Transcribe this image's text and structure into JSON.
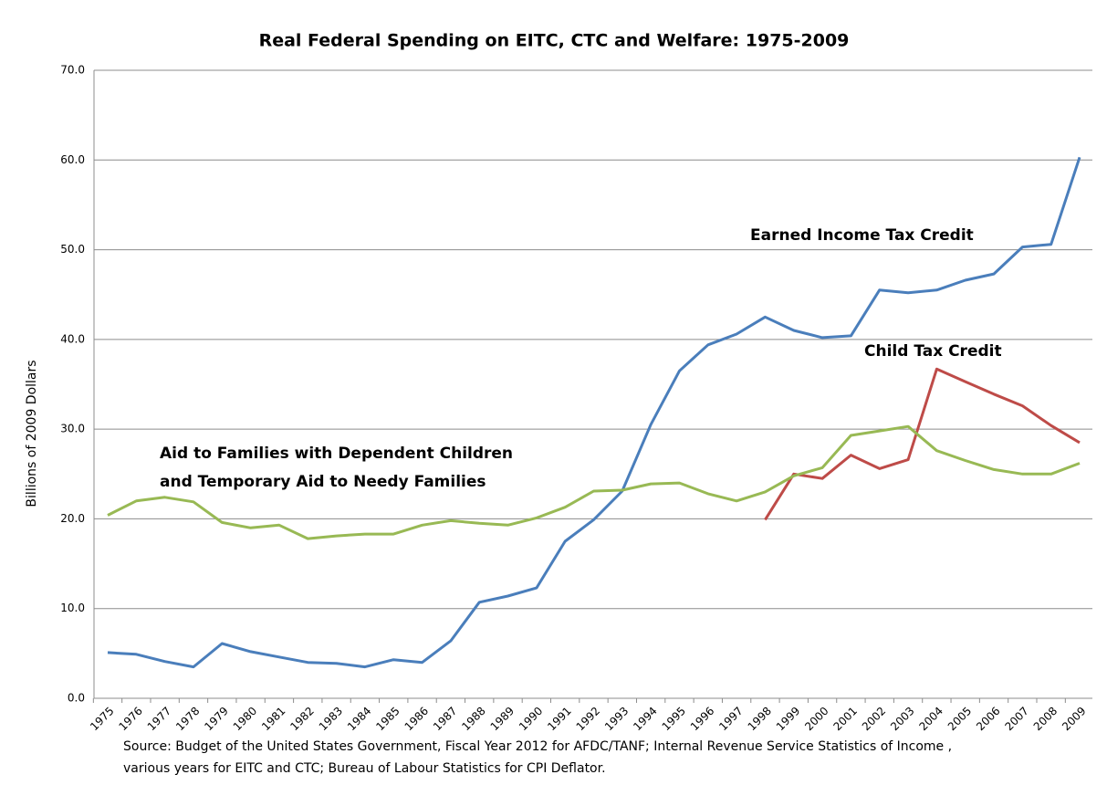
{
  "chart_data": {
    "type": "line",
    "title": "Real Federal Spending on EITC, CTC and Welfare: 1975-2009",
    "y_label": "Billions of 2009 Dollars",
    "categories": [
      "1975",
      "1976",
      "1977",
      "1978",
      "1979",
      "1980",
      "1981",
      "1982",
      "1983",
      "1984",
      "1985",
      "1986",
      "1987",
      "1988",
      "1989",
      "1990",
      "1991",
      "1992",
      "1993",
      "1994",
      "1995",
      "1996",
      "1997",
      "1998",
      "1999",
      "2000",
      "2001",
      "2002",
      "2003",
      "2004",
      "2005",
      "2006",
      "2007",
      "2008",
      "2009"
    ],
    "series": [
      {
        "name": "Earned Income Tax Credit",
        "color": "#4a7ebb",
        "values": [
          5.1,
          4.9,
          4.1,
          3.5,
          6.1,
          5.2,
          4.6,
          4.0,
          3.9,
          3.5,
          4.3,
          4.0,
          6.4,
          10.7,
          11.4,
          12.3,
          17.5,
          19.9,
          23.1,
          30.5,
          36.5,
          39.4,
          40.6,
          42.5,
          41.0,
          40.2,
          40.4,
          45.5,
          45.2,
          45.5,
          46.6,
          47.3,
          50.3,
          50.6,
          60.3
        ]
      },
      {
        "name": "Child Tax Credit",
        "color": "#be4b48",
        "values": [
          null,
          null,
          null,
          null,
          null,
          null,
          null,
          null,
          null,
          null,
          null,
          null,
          null,
          null,
          null,
          null,
          null,
          null,
          null,
          null,
          null,
          null,
          null,
          19.9,
          25.0,
          24.5,
          27.1,
          25.6,
          26.6,
          36.7,
          35.3,
          33.9,
          32.6,
          30.4,
          28.5
        ]
      },
      {
        "label_lines": [
          "Aid to Families with Dependent Children",
          "and Temporary Aid to Needy Families"
        ],
        "color": "#98b954",
        "values": [
          20.4,
          22.0,
          22.4,
          21.9,
          19.6,
          19.0,
          19.3,
          17.8,
          18.1,
          18.3,
          18.3,
          19.3,
          19.8,
          19.5,
          19.3,
          20.1,
          21.3,
          23.1,
          23.2,
          23.9,
          24.0,
          22.8,
          22.0,
          23.0,
          24.8,
          25.7,
          29.3,
          29.8,
          30.3,
          27.6,
          26.5,
          25.5,
          25.0,
          25.0,
          26.2
        ]
      }
    ],
    "ylim": [
      0,
      70
    ],
    "yticks": [
      {
        "value": 0,
        "label": "0.0"
      },
      {
        "value": 10,
        "label": "10.0"
      },
      {
        "value": 20,
        "label": "20.0"
      },
      {
        "value": 30,
        "label": "30.0"
      },
      {
        "value": 40,
        "label": "40.0"
      },
      {
        "value": 50,
        "label": "50.0"
      },
      {
        "value": 60,
        "label": "60.0"
      },
      {
        "value": 70,
        "label": "70.0"
      }
    ],
    "grid": true,
    "source": [
      "Source: Budget of the United States Government, Fiscal Year 2012  for AFDC/TANF; Internal Revenue Service Statistics of Income ,",
      "various years for EITC and CTC; Bureau of Labour Statistics for CPI Deflator."
    ]
  }
}
